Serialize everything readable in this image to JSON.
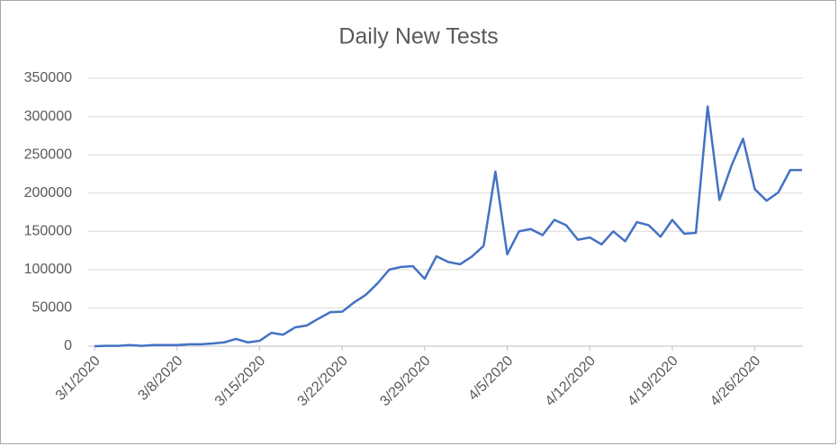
{
  "chart_data": {
    "type": "line",
    "title": "Daily New Tests",
    "categories": [
      "3/1/2020",
      null,
      null,
      null,
      null,
      null,
      null,
      "3/8/2020",
      null,
      null,
      null,
      null,
      null,
      null,
      "3/15/2020",
      null,
      null,
      null,
      null,
      null,
      null,
      "3/22/2020",
      null,
      null,
      null,
      null,
      null,
      null,
      "3/29/2020",
      null,
      null,
      null,
      null,
      null,
      null,
      "4/5/2020",
      null,
      null,
      null,
      null,
      null,
      null,
      "4/12/2020",
      null,
      null,
      null,
      null,
      null,
      null,
      "4/19/2020",
      null,
      null,
      null,
      null,
      null,
      null,
      "4/26/2020",
      null,
      null,
      null,
      null
    ],
    "series": [
      {
        "name": "Daily New Tests",
        "color": "#4472c4",
        "values": [
          0,
          500,
          500,
          1500,
          500,
          1500,
          1500,
          1500,
          2500,
          2500,
          3500,
          5000,
          9500,
          5000,
          7000,
          17500,
          15000,
          24500,
          27000,
          36000,
          44500,
          45000,
          57000,
          67000,
          82000,
          100000,
          103500,
          104500,
          88000,
          117500,
          110000,
          107000,
          117000,
          131000,
          228000,
          120000,
          150000,
          153000,
          145000,
          165000,
          158000,
          139000,
          142000,
          133000,
          150000,
          137000,
          162000,
          158000,
          143000,
          165000,
          147000,
          148000,
          313000,
          191000,
          235000,
          271000,
          205000,
          190000,
          201000,
          230000,
          230000
        ]
      }
    ],
    "ylim": [
      0,
      350000
    ],
    "yticks": [
      0,
      50000,
      100000,
      150000,
      200000,
      250000,
      300000,
      350000
    ],
    "grid": true
  }
}
